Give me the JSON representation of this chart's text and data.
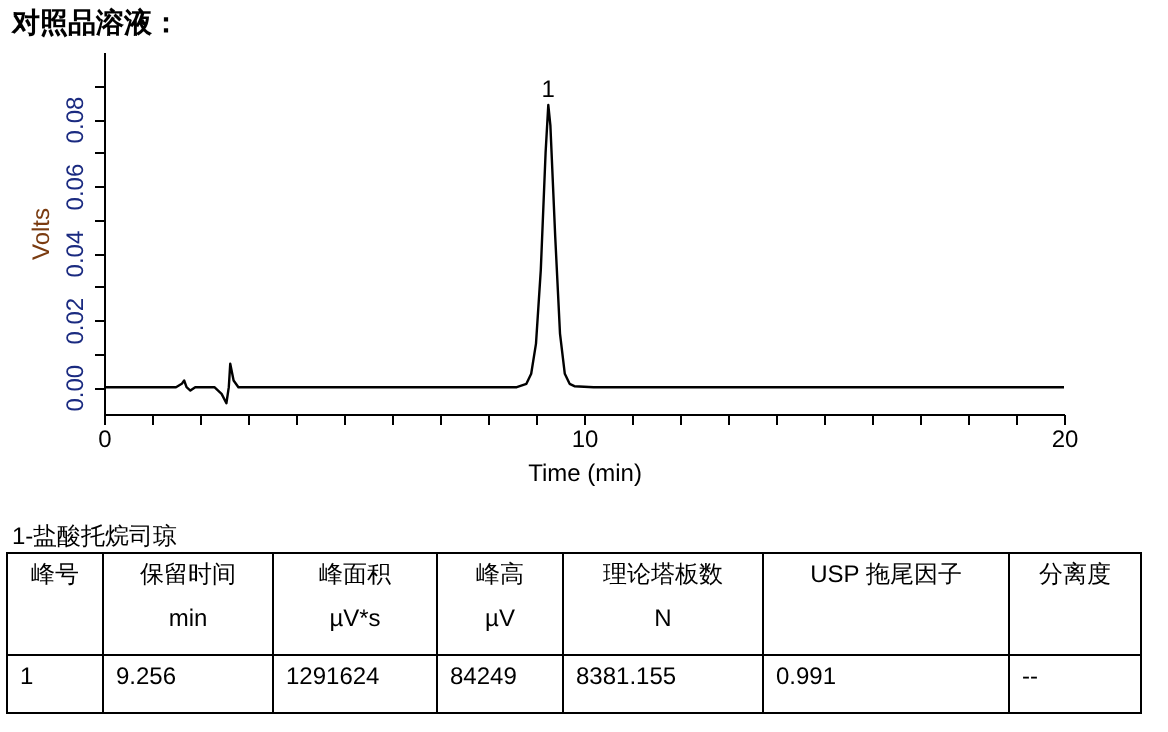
{
  "chart_data": {
    "type": "line",
    "title": "对照品溶液：",
    "xlabel": "Time (min)",
    "ylabel": "Volts",
    "x": [
      0,
      1.5,
      1.62,
      1.67,
      1.72,
      1.8,
      1.9,
      2.3,
      2.45,
      2.55,
      2.6,
      2.63,
      2.7,
      2.8,
      3.0,
      6.5,
      8.6,
      8.8,
      8.9,
      9.0,
      9.1,
      9.2,
      9.256,
      9.3,
      9.4,
      9.5,
      9.6,
      9.7,
      9.8,
      10.2,
      20
    ],
    "series": [
      {
        "color": "#000000",
        "values": [
          0,
          0,
          0.001,
          0.002,
          0,
          -0.001,
          0,
          0,
          -0.002,
          -0.0048,
          0,
          0.007,
          0.002,
          0,
          0,
          0,
          0,
          0.001,
          0.004,
          0.013,
          0.035,
          0.07,
          0.0842,
          0.078,
          0.045,
          0.016,
          0.004,
          0.001,
          0.0003,
          0,
          0
        ]
      }
    ],
    "xlim": [
      0,
      20
    ],
    "xticks": [
      0,
      {
        "value": 1,
        "label": null
      },
      {
        "value": 2,
        "label": null
      },
      {
        "value": 3,
        "label": null
      },
      {
        "value": 4,
        "label": null
      },
      {
        "value": 5,
        "label": null
      },
      {
        "value": 6,
        "label": null
      },
      {
        "value": 7,
        "label": null
      },
      {
        "value": 8,
        "label": null
      },
      {
        "value": 9,
        "label": null
      },
      10,
      {
        "value": 11,
        "label": null
      },
      {
        "value": 12,
        "label": null
      },
      {
        "value": 13,
        "label": null
      },
      {
        "value": 14,
        "label": null
      },
      {
        "value": 15,
        "label": null
      },
      {
        "value": 16,
        "label": null
      },
      {
        "value": 17,
        "label": null
      },
      {
        "value": 18,
        "label": null
      },
      {
        "value": 19,
        "label": null
      },
      20
    ],
    "ylim": [
      -0.008,
      0.1
    ],
    "yticks": [
      {
        "value": 0,
        "label": "0.00"
      },
      {
        "value": 0.01,
        "label": null
      },
      {
        "value": 0.02,
        "label": "0.02"
      },
      {
        "value": 0.03,
        "label": null
      },
      {
        "value": 0.04,
        "label": "0.04"
      },
      {
        "value": 0.05,
        "label": null
      },
      {
        "value": 0.06,
        "label": "0.06"
      },
      {
        "value": 0.07,
        "label": null
      },
      {
        "value": 0.08,
        "label": "0.08"
      },
      {
        "value": 0.09,
        "label": null
      }
    ],
    "grid": false,
    "legend": false,
    "marker": "none",
    "line_style": "solid",
    "annotations": [
      {
        "text": "1",
        "x": 9.256,
        "y": 0.0842
      },
      "1-盐酸托烷司琼",
      "峰号",
      "保留时间",
      "峰面积",
      "峰高",
      "理论塔板数",
      "USP 拖尾因子",
      "分离度",
      "min",
      "µV*s",
      "µV",
      "N",
      "1",
      "9.256",
      "1291624",
      "84249",
      "8381.155",
      "0.991",
      "--"
    ]
  }
}
